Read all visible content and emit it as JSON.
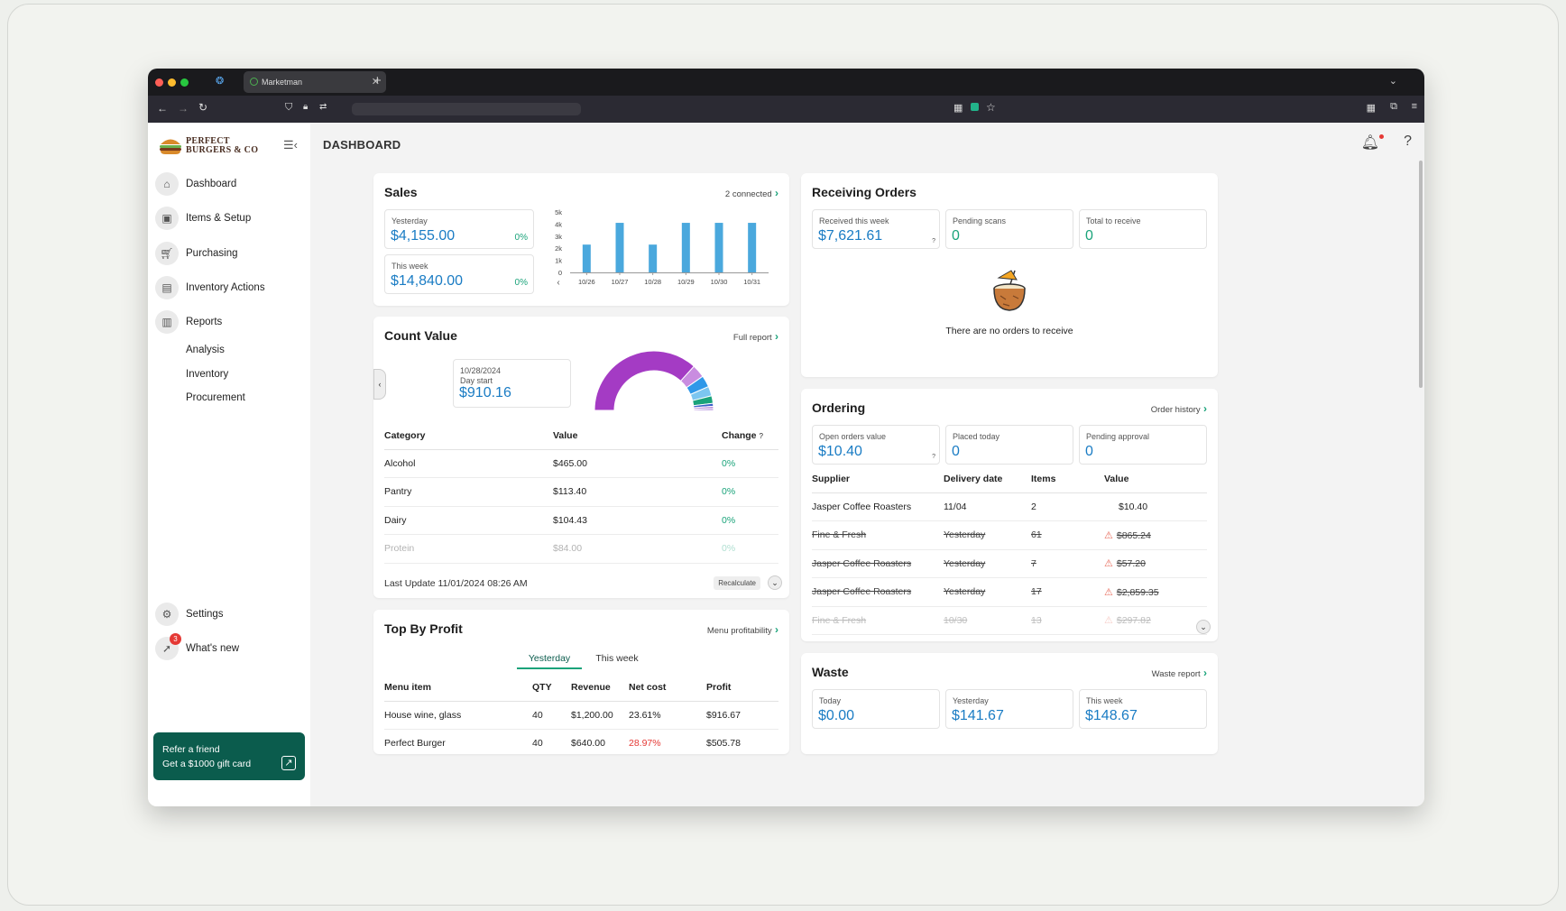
{
  "browser": {
    "tab_title": "Marketman"
  },
  "brand": {
    "line1": "PERFECT",
    "line2": "BURGERS & CO"
  },
  "page_title": "DASHBOARD",
  "nav": {
    "items": [
      {
        "label": "Dashboard",
        "icon": "home-icon"
      },
      {
        "label": "Items & Setup",
        "icon": "package-icon"
      },
      {
        "label": "Purchasing",
        "icon": "cart-icon"
      },
      {
        "label": "Inventory Actions",
        "icon": "clipboard-icon"
      },
      {
        "label": "Reports",
        "icon": "chart-icon"
      }
    ],
    "report_sub": [
      "Analysis",
      "Inventory",
      "Procurement"
    ],
    "settings": "Settings",
    "whats_new": "What's new",
    "whats_new_badge": "3",
    "refer_line1": "Refer a friend",
    "refer_line2": "Get a $1000 gift card"
  },
  "sales": {
    "title": "Sales",
    "link": "2 connected",
    "yesterday_label": "Yesterday",
    "yesterday_value": "$4,155.00",
    "yesterday_pct": "0%",
    "week_label": "This week",
    "week_value": "$14,840.00",
    "week_pct": "0%"
  },
  "chart_data": {
    "type": "bar",
    "categories": [
      "10/26",
      "10/27",
      "10/28",
      "10/29",
      "10/30",
      "10/31"
    ],
    "values": [
      2300,
      4100,
      2300,
      4100,
      4100,
      4100
    ],
    "yticks": [
      "0",
      "1k",
      "2k",
      "3k",
      "4k",
      "5k"
    ],
    "ylim": [
      0,
      5000
    ],
    "color": "#4aa8dd"
  },
  "count_value": {
    "title": "Count Value",
    "link": "Full report",
    "date": "10/28/2024",
    "date_sub": "Day start",
    "value": "$910.16",
    "headers": [
      "Category",
      "Value",
      "Change"
    ],
    "change_hint": "?",
    "rows": [
      [
        "Alcohol",
        "$465.00",
        "0%"
      ],
      [
        "Pantry",
        "$113.40",
        "0%"
      ],
      [
        "Dairy",
        "$104.43",
        "0%"
      ],
      [
        "Protein",
        "$84.00",
        "0%"
      ]
    ],
    "last_update": "Last Update 11/01/2024 08:26 AM",
    "recalc": "Recalculate",
    "donut": [
      {
        "value": 465,
        "color": "#a43bc4"
      },
      {
        "value": 45,
        "color": "#c98de0"
      },
      {
        "value": 40,
        "color": "#2f98e8"
      },
      {
        "value": 33,
        "color": "#7cc6f0"
      },
      {
        "value": 26,
        "color": "#1aa37a"
      },
      {
        "value": 10,
        "color": "#3c5fc8"
      },
      {
        "value": 8,
        "color": "#b68ad8"
      },
      {
        "value": 6,
        "color": "#9a6ad0"
      }
    ]
  },
  "top_profit": {
    "title": "Top By Profit",
    "link": "Menu profitability",
    "tabs": [
      "Yesterday",
      "This week"
    ],
    "headers": [
      "Menu item",
      "QTY",
      "Revenue",
      "Net cost",
      "Profit"
    ],
    "rows": [
      [
        "House wine, glass",
        "40",
        "$1,200.00",
        "23.61%",
        "$916.67"
      ],
      [
        "Perfect Burger",
        "40",
        "$640.00",
        "28.97%",
        "$505.78"
      ]
    ]
  },
  "receiving": {
    "title": "Receiving Orders",
    "kpis": [
      {
        "label": "Received this week",
        "value": "$7,621.61",
        "hint": "?"
      },
      {
        "label": "Pending scans",
        "value": "0"
      },
      {
        "label": "Total to receive",
        "value": "0"
      }
    ],
    "empty": "There are no orders to receive"
  },
  "ordering": {
    "title": "Ordering",
    "link": "Order history",
    "kpis": [
      {
        "label": "Open orders value",
        "value": "$10.40",
        "hint": "?"
      },
      {
        "label": "Placed today",
        "value": "0"
      },
      {
        "label": "Pending approval",
        "value": "0"
      }
    ],
    "headers": [
      "Supplier",
      "Delivery date",
      "Items",
      "Value"
    ],
    "rows": [
      [
        "Jasper Coffee Roasters",
        "11/04",
        "2",
        "$10.40"
      ],
      [
        "Fine & Fresh",
        "Yesterday",
        "61",
        "$865.24"
      ],
      [
        "Jasper Coffee Roasters",
        "Yesterday",
        "7",
        "$57.20"
      ],
      [
        "Jasper Coffee Roasters",
        "Yesterday",
        "17",
        "$2,859.35"
      ],
      [
        "Fine & Fresh",
        "10/30",
        "13",
        "$297.82"
      ]
    ]
  },
  "waste": {
    "title": "Waste",
    "link": "Waste report",
    "kpis": [
      {
        "label": "Today",
        "value": "$0.00"
      },
      {
        "label": "Yesterday",
        "value": "$141.67"
      },
      {
        "label": "This week",
        "value": "$148.67"
      }
    ]
  }
}
